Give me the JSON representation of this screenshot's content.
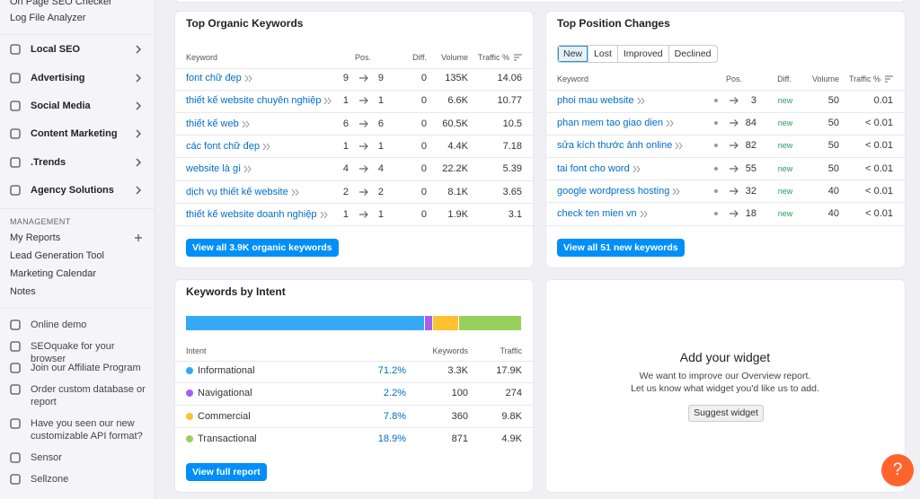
{
  "sidebar": {
    "top_items": [
      "On Page SEO Checker",
      "Log File Analyzer"
    ],
    "menu": [
      "Local SEO",
      "Advertising",
      "Social Media",
      "Content Marketing",
      ".Trends",
      "Agency Solutions"
    ],
    "management": {
      "heading": "MANAGEMENT",
      "items": [
        "My Reports",
        "Lead Generation Tool",
        "Marketing Calendar",
        "Notes"
      ]
    },
    "footer_items": [
      "Online demo",
      "SEOquake for your browser",
      "Join our Affiliate Program",
      "Order custom database or report",
      "Have you seen our new customizable API format?",
      "Sensor",
      "Sellzone"
    ]
  },
  "organic": {
    "title": "Top Organic Keywords",
    "headers": [
      "Keyword",
      "Pos.",
      "Diff.",
      "Volume",
      "Traffic %"
    ],
    "rows": [
      {
        "keyword": "font chữ đẹp",
        "pos_from": "9",
        "pos_to": "9",
        "diff": "0",
        "volume": "135K",
        "traffic": "14.06"
      },
      {
        "keyword": "thiết kế website chuyên nghiệp",
        "pos_from": "1",
        "pos_to": "1",
        "diff": "0",
        "volume": "6.6K",
        "traffic": "10.77"
      },
      {
        "keyword": "thiết kế web",
        "pos_from": "6",
        "pos_to": "6",
        "diff": "0",
        "volume": "60.5K",
        "traffic": "10.5"
      },
      {
        "keyword": "các font chữ đẹp",
        "pos_from": "1",
        "pos_to": "1",
        "diff": "0",
        "volume": "4.4K",
        "traffic": "7.18"
      },
      {
        "keyword": "website là gì",
        "pos_from": "4",
        "pos_to": "4",
        "diff": "0",
        "volume": "22.2K",
        "traffic": "5.39"
      },
      {
        "keyword": "dịch vụ thiết kế website",
        "pos_from": "2",
        "pos_to": "2",
        "diff": "0",
        "volume": "8.1K",
        "traffic": "3.65"
      },
      {
        "keyword": "thiết kế website doanh nghiệp",
        "pos_from": "1",
        "pos_to": "1",
        "diff": "0",
        "volume": "1.9K",
        "traffic": "3.1"
      }
    ],
    "button": "View all 3.9K organic keywords"
  },
  "position_changes": {
    "title": "Top Position Changes",
    "tabs": [
      "New",
      "Lost",
      "Improved",
      "Declined"
    ],
    "headers": [
      "Keyword",
      "Pos.",
      "Diff.",
      "Volume",
      "Traffic %"
    ],
    "rows": [
      {
        "keyword": "phoi mau website",
        "pos_to": "3",
        "diff": "new",
        "volume": "50",
        "traffic": "0.01"
      },
      {
        "keyword": "phan mem tao giao dien",
        "pos_to": "84",
        "diff": "new",
        "volume": "50",
        "traffic": "< 0.01"
      },
      {
        "keyword": "sửa kích thước ảnh online",
        "pos_to": "82",
        "diff": "new",
        "volume": "50",
        "traffic": "< 0.01"
      },
      {
        "keyword": "tai font cho word",
        "pos_to": "55",
        "diff": "new",
        "volume": "50",
        "traffic": "< 0.01"
      },
      {
        "keyword": "google wordpress hosting",
        "pos_to": "32",
        "diff": "new",
        "volume": "40",
        "traffic": "< 0.01"
      },
      {
        "keyword": "check ten mien vn",
        "pos_to": "18",
        "diff": "new",
        "volume": "40",
        "traffic": "< 0.01"
      }
    ],
    "button": "View all 51 new keywords"
  },
  "intent": {
    "title": "Keywords by Intent",
    "headers": [
      "Intent",
      "Keywords",
      "Traffic"
    ],
    "rows": [
      {
        "name": "Informational",
        "color": "#35a9f5",
        "share": {
          "value": 71.2,
          "label": "71.2%"
        },
        "keywords": "3.3K",
        "traffic": "17.9K"
      },
      {
        "name": "Navigational",
        "color": "#a660f0",
        "share": {
          "value": 2.2,
          "label": "2.2%"
        },
        "keywords": "100",
        "traffic": "274"
      },
      {
        "name": "Commercial",
        "color": "#ffc130",
        "share": {
          "value": 7.8,
          "label": "7.8%"
        },
        "keywords": "360",
        "traffic": "9.8K"
      },
      {
        "name": "Transactional",
        "color": "#98d05a",
        "share": {
          "value": 18.9,
          "label": "18.9%"
        },
        "keywords": "871",
        "traffic": "4.9K"
      }
    ],
    "button": "View full report"
  },
  "widget": {
    "title": "Add your widget",
    "lines": [
      "We want to improve our Overview report.",
      "Let us know what widget you'd like us to add."
    ],
    "button": "Suggest widget"
  },
  "help": "?"
}
